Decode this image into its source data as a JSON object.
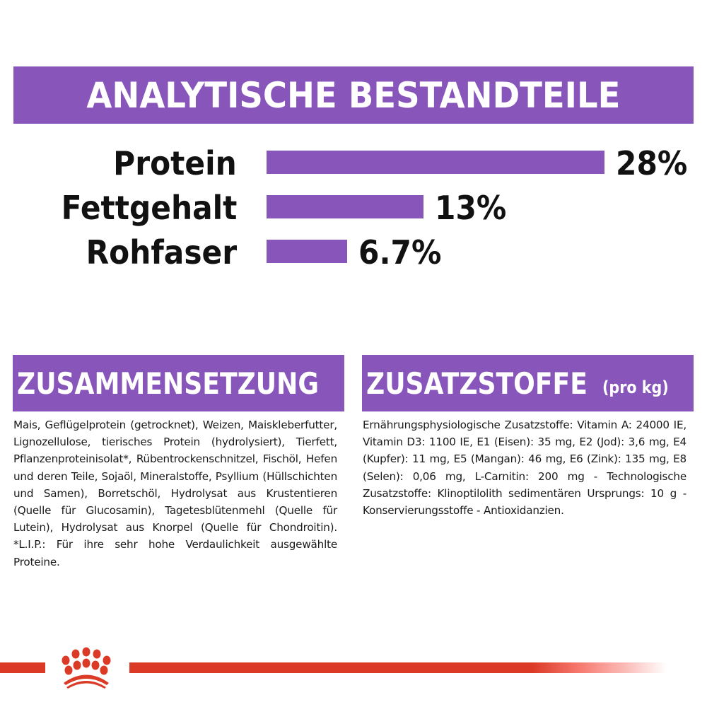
{
  "analytical_section": {
    "title": "ANALYTISCHE BESTANDTEILE"
  },
  "chart_data": {
    "type": "bar",
    "orientation": "horizontal",
    "title": "ANALYTISCHE BESTANDTEILE",
    "categories": [
      "Protein",
      "Fettgehalt",
      "Rohfaser"
    ],
    "values": [
      28,
      13,
      6.7
    ],
    "value_labels": [
      "28%",
      "13%",
      "6.7%"
    ],
    "unit": "%",
    "xlabel": "",
    "ylabel": "",
    "grid": false,
    "legend": null,
    "bar_color": "#8856BB"
  },
  "composition": {
    "title": "ZUSAMMENSETZUNG",
    "text": "Mais, Geflügelprotein (getrocknet), Weizen, Maiskleberfutter, Lignozellulose, tierisches Protein (hydrolysiert), Tierfett, Pflanzenproteinisolat*, Rübentrockenschnitzel, Fischöl, Hefen und deren Teile, Sojaöl, Mineralstoffe, Psyllium (Hüllschichten und Samen), Borretschöl, Hydrolysat aus Krustentieren (Quelle für Glucosamin), Tagetesblütenmehl (Quelle für Lutein), Hydrolysat aus Knorpel (Quelle für Chondroitin). *L.I.P.: Für ihre sehr hohe Verdaulichkeit ausgewählte Proteine."
  },
  "additives": {
    "title": "ZUSATZSTOFFE",
    "subtitle": "(pro kg)",
    "text": "Ernährungsphysiologische Zusatzstoffe: Vitamin A: 24000 IE, Vitamin D3: 1100 IE, E1 (Eisen): 35 mg, E2 (Jod): 3,6 mg, E4 (Kupfer): 11 mg, E5 (Mangan): 46 mg, E6 (Zink): 135 mg, E8 (Selen): 0,06 mg, L-Carnitin: 200 mg - Technologische Zusatzstoffe: Klinoptilolith sedimentären Ursprungs: 10 g - Konservierungsstoffe - Antioxidanzien."
  },
  "footer": {
    "logo_icon": "crown-icon",
    "stripe_color": "#DB3A26"
  },
  "colors": {
    "accent_purple": "#8856BB",
    "brand_red": "#DB3A26",
    "text": "#111111"
  }
}
